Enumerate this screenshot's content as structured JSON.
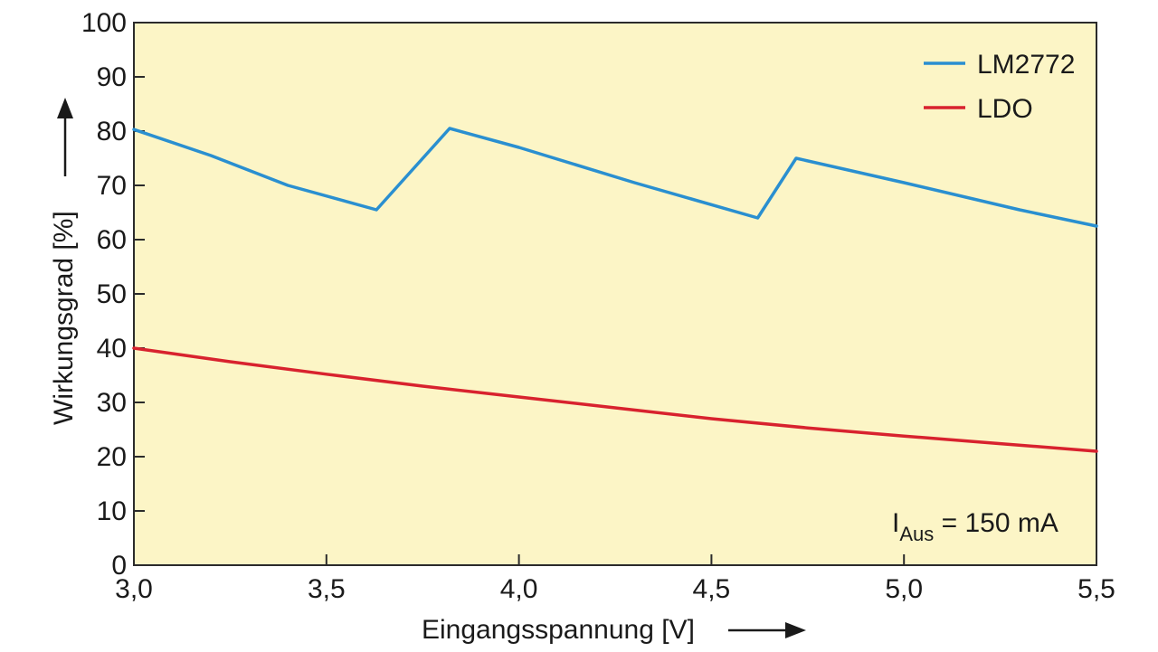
{
  "chart_data": {
    "type": "line",
    "xlabel": "Eingangsspannung [V]",
    "ylabel": "Wirkungsgrad [%]",
    "xlim": [
      3.0,
      5.5
    ],
    "ylim": [
      0,
      100
    ],
    "x_ticks": [
      "3,0",
      "3,5",
      "4,0",
      "4,5",
      "5,0",
      "5,5"
    ],
    "y_ticks": [
      "0",
      "10",
      "20",
      "30",
      "40",
      "50",
      "60",
      "70",
      "80",
      "90",
      "100"
    ],
    "grid": false,
    "legend_position": "top-right",
    "plot_background": "#fcf5c6",
    "series": [
      {
        "name": "LM2772",
        "color": "#2a8fd0",
        "x": [
          3.0,
          3.2,
          3.4,
          3.63,
          3.82,
          4.0,
          4.3,
          4.62,
          4.72,
          5.0,
          5.3,
          5.5
        ],
        "y": [
          80.3,
          75.5,
          70.0,
          65.5,
          80.5,
          77.0,
          70.5,
          64.0,
          75.0,
          70.5,
          65.5,
          62.5
        ]
      },
      {
        "name": "LDO",
        "color": "#d8222e",
        "x": [
          3.0,
          3.25,
          3.5,
          3.75,
          4.0,
          4.25,
          4.5,
          4.75,
          5.0,
          5.25,
          5.5
        ],
        "y": [
          40.0,
          37.5,
          35.2,
          33.0,
          31.0,
          29.0,
          27.0,
          25.3,
          23.8,
          22.4,
          21.0
        ]
      }
    ],
    "annotation": {
      "prefix": "I",
      "subscript": "Aus",
      "text": " = 150 mA"
    }
  }
}
